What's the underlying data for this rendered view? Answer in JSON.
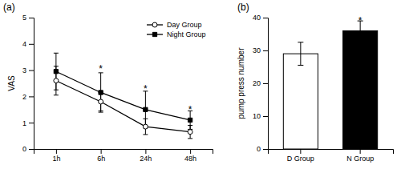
{
  "chart_data": [
    {
      "type": "line",
      "title": "(a)",
      "categories": [
        "1h",
        "6h",
        "24h",
        "48h"
      ],
      "series": [
        {
          "name": "Night Group",
          "color": "#000000",
          "marker": "square",
          "values": [
            2.95,
            2.15,
            1.5,
            1.1
          ],
          "errors": [
            0.7,
            0.75,
            0.7,
            0.35
          ]
        },
        {
          "name": "Day Group",
          "color": "#000000",
          "marker": "circle",
          "values": [
            2.6,
            1.8,
            0.85,
            0.65
          ],
          "errors": [
            0.55,
            0.35,
            0.3,
            0.25
          ]
        }
      ],
      "ylabel": "VAS",
      "ylim": [
        0,
        5
      ],
      "yticks": [
        0,
        1,
        2,
        3,
        4,
        5
      ],
      "legend": "upper right",
      "annotations": [
        {
          "x": "6h",
          "y": 3.1,
          "text": "*"
        },
        {
          "x": "24h",
          "y": 2.35,
          "text": "*"
        },
        {
          "x": "48h",
          "y": 1.55,
          "text": "*"
        }
      ]
    },
    {
      "type": "bar",
      "title": "(b)",
      "categories": [
        "D Group",
        "N Group"
      ],
      "values": [
        29.0,
        36.0
      ],
      "errors": [
        3.5,
        3.0
      ],
      "colors": [
        "#ffffff",
        "#000000"
      ],
      "ylabel": "pump press number",
      "ylim": [
        0,
        40
      ],
      "yticks": [
        0,
        10,
        20,
        30,
        40
      ],
      "annotations": [
        {
          "x": "N Group",
          "y": 39.5,
          "text": "*"
        }
      ]
    }
  ]
}
